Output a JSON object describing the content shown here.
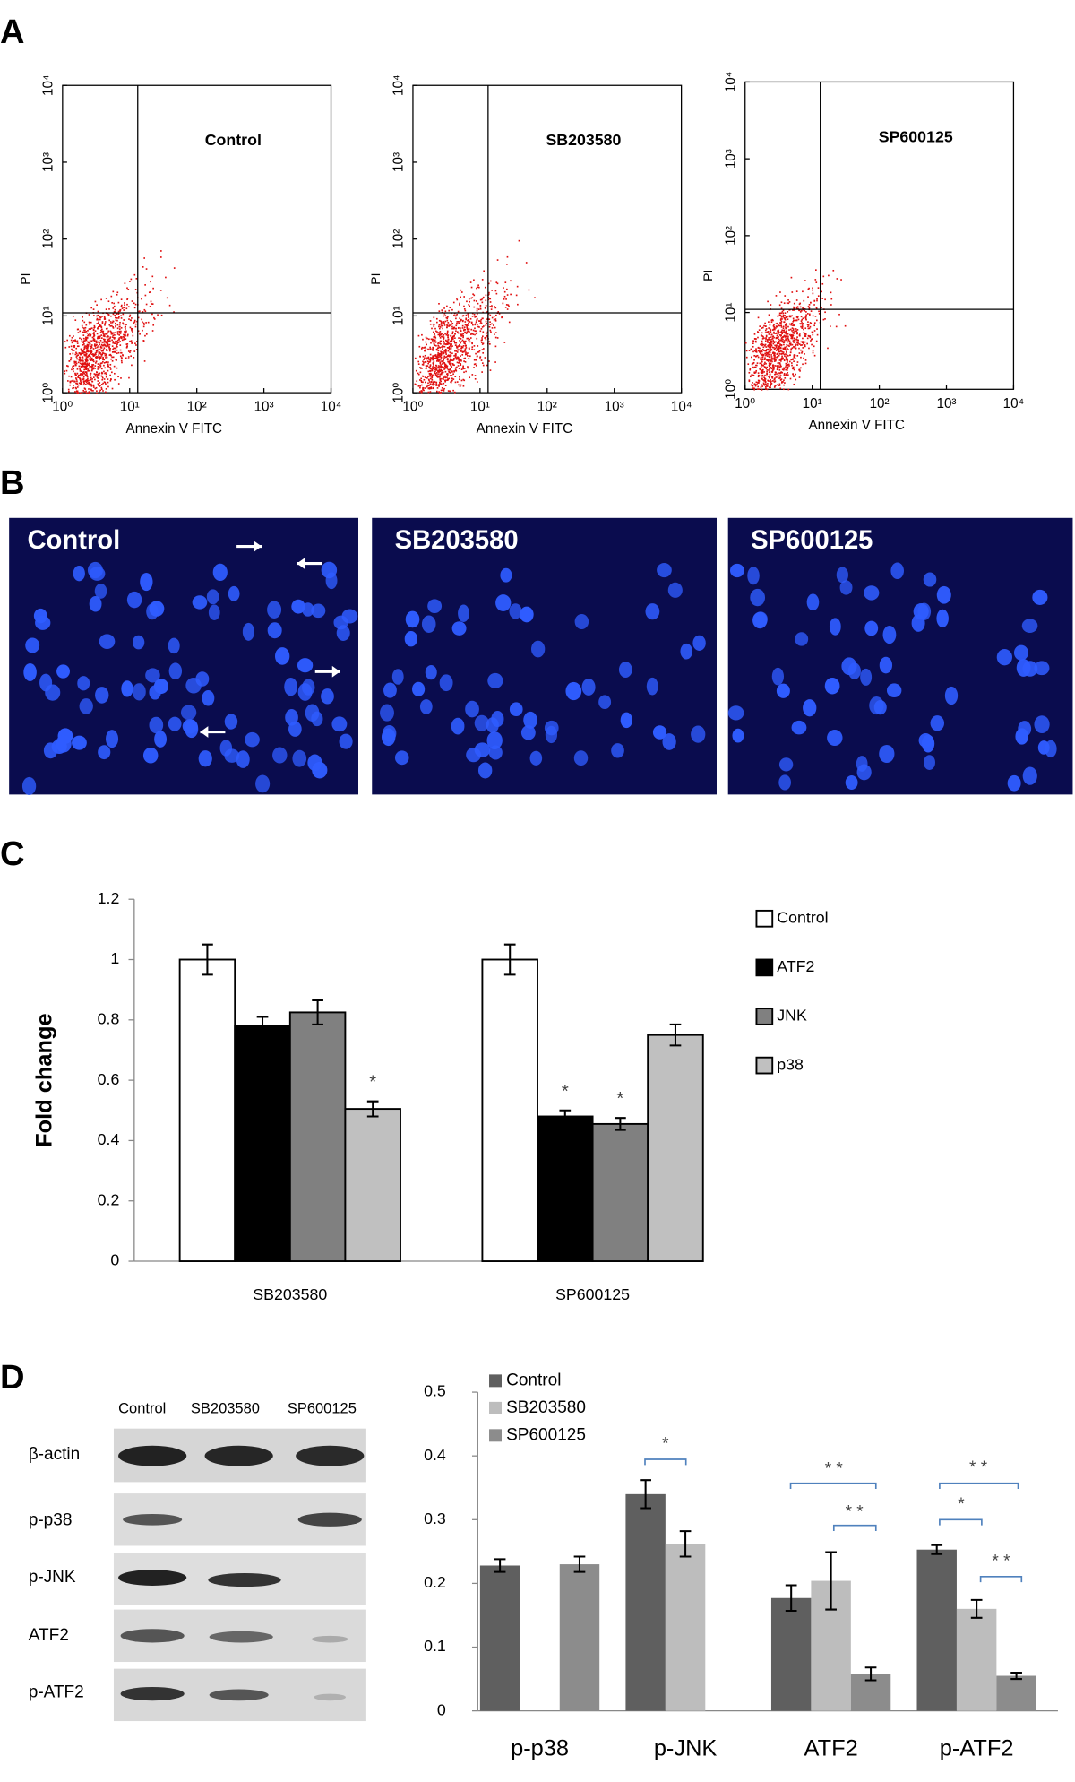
{
  "panels": [
    "A",
    "B",
    "C",
    "D"
  ],
  "flow": {
    "xlabel": "Annexin V FITC",
    "ylabel": "PI",
    "plots": [
      "Control",
      "SB203580",
      "SP600125"
    ],
    "lim": [
      0,
      4
    ],
    "ticks": [
      {
        "value": 0,
        "label": "10⁰"
      },
      {
        "value": 1,
        "label": "10¹"
      },
      {
        "value": 2,
        "label": "10²"
      },
      {
        "value": 3,
        "label": "10³"
      },
      {
        "value": 4,
        "label": "10⁴"
      }
    ],
    "quadrant": [
      1.12,
      1.04
    ]
  },
  "micrographs": [
    "Control",
    "SB203580",
    "SP600125"
  ],
  "blot": {
    "lanes": [
      "Control",
      "SB203580",
      "SP600125"
    ],
    "rows": [
      "β-actin",
      "p-p38",
      "p-JNK",
      "ATF2",
      "p-ATF2"
    ]
  },
  "chart_data": [
    {
      "type": "bar",
      "ylabel": "Fold change",
      "categories": [
        "SB203580",
        "SP600125"
      ],
      "series": [
        {
          "name": "Control",
          "color": "#ffffff",
          "values": [
            1,
            1
          ],
          "errors": [
            0.05,
            0.05
          ],
          "significance": [
            null,
            null
          ]
        },
        {
          "name": "ATF2",
          "color": "#000000",
          "values": [
            0.78,
            0.48
          ],
          "errors": [
            0.03,
            0.02
          ],
          "significance": [
            null,
            "*"
          ]
        },
        {
          "name": "JNK",
          "color": "#808080",
          "values": [
            0.825,
            0.455
          ],
          "errors": [
            0.04,
            0.02
          ],
          "significance": [
            null,
            "*"
          ]
        },
        {
          "name": "p38",
          "color": "#c0c0c0",
          "values": [
            0.505,
            0.75
          ],
          "errors": [
            0.025,
            0.035
          ],
          "significance": [
            "*",
            null
          ]
        }
      ],
      "ylim": [
        0,
        1.2
      ],
      "yticks": [
        0,
        0.2,
        0.4,
        0.6,
        0.8,
        1,
        1.2
      ],
      "legend": "right"
    },
    {
      "type": "bar",
      "categories": [
        "p-p38",
        "p-JNK",
        "ATF2",
        "p-ATF2"
      ],
      "series": [
        {
          "name": "Control",
          "color": "#5f5f5f",
          "values": [
            0.228,
            0.34,
            0.177,
            0.253
          ],
          "errors": [
            0.01,
            0.022,
            0.02,
            0.007
          ]
        },
        {
          "name": "SB203580",
          "color": "#bdbdbd",
          "values": [
            null,
            0.262,
            0.204,
            0.16
          ],
          "errors": [
            null,
            0.02,
            0.045,
            0.014
          ]
        },
        {
          "name": "SP600125",
          "color": "#8c8c8c",
          "values": [
            0.23,
            null,
            0.058,
            0.055
          ],
          "errors": [
            0.012,
            null,
            0.01,
            0.005
          ]
        }
      ],
      "ylim": [
        0,
        0.5
      ],
      "yticks": [
        0,
        0.1,
        0.2,
        0.3,
        0.4,
        0.5
      ],
      "annotations": [
        "*",
        "* *",
        "* *",
        "* *",
        "*",
        "* *"
      ],
      "legend": "top-left"
    }
  ]
}
